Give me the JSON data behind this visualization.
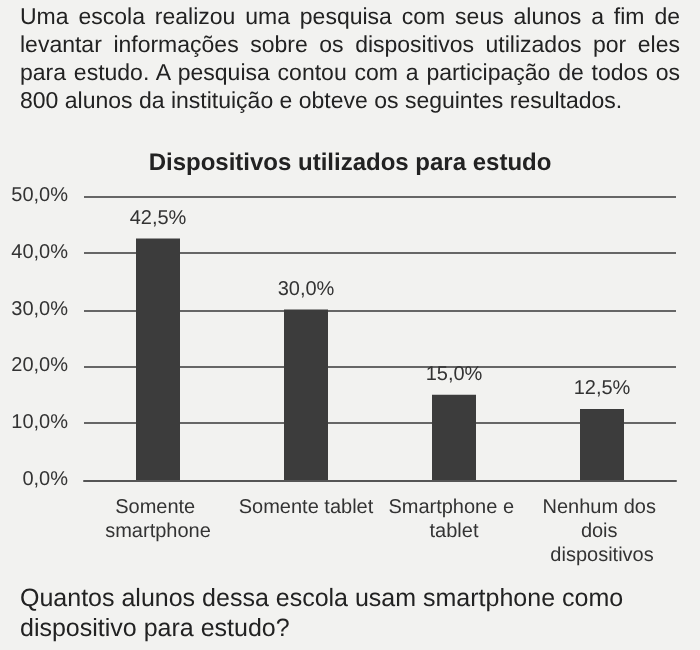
{
  "chart_data": {
    "type": "bar",
    "title": "Dispositivos utilizados para estudo",
    "annotations": [
      "Uma escola realizou uma pesquisa com seus alunos a fim de levantar informações sobre os dispositivos utilizados por eles para estudo. A pesquisa contou com a participação de todos os 800 alunos da instituição e obteve os seguintes resultados.",
      "Quantos alunos dessa escola usam smartphone como dispositivo para estudo?"
    ],
    "categories": [
      "Somente smartphone",
      "Somente tablet",
      "Smartphone e tablet",
      "Nenhum dos dois dispositivos"
    ],
    "values": [
      42.5,
      30.0,
      15.0,
      12.5
    ],
    "color": "#3c3c3c",
    "value_labels": [
      "42,5%",
      "30,0%",
      "15,0%",
      "12,5%"
    ],
    "ylim": [
      0,
      50
    ],
    "yticks": [
      {
        "value": 0,
        "label": "0,0%"
      },
      {
        "value": 10,
        "label": "10,0%"
      },
      {
        "value": 20,
        "label": "20,0%"
      },
      {
        "value": 30,
        "label": "30,0%"
      },
      {
        "value": 40,
        "label": "40,0%"
      },
      {
        "value": 50,
        "label": "50,0%"
      }
    ],
    "grid": "y"
  }
}
